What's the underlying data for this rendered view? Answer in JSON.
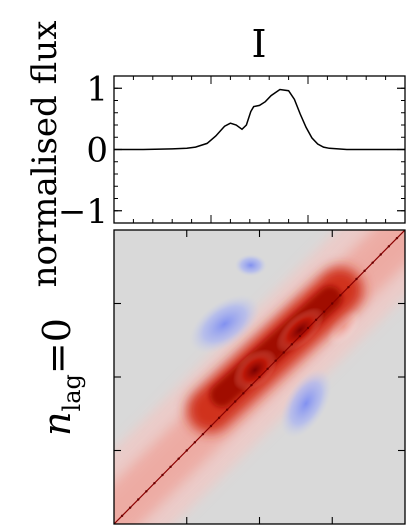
{
  "chart_data": [
    {
      "type": "line",
      "title": "I",
      "ylabel": "normalised flux",
      "xlabel": "",
      "ylim": [
        -1.2,
        1.2
      ],
      "yticks": [
        1,
        0,
        -1
      ],
      "ytick_labels": [
        "1",
        "0",
        "−1"
      ],
      "grid": false,
      "series": [
        {
          "x": [
            0.0,
            0.1,
            0.2,
            0.25,
            0.28,
            0.32,
            0.35,
            0.38,
            0.4,
            0.42,
            0.44,
            0.455,
            0.47,
            0.48,
            0.49,
            0.5,
            0.52,
            0.54,
            0.57,
            0.6,
            0.62,
            0.64,
            0.66,
            0.68,
            0.7,
            0.72,
            0.74,
            0.77,
            0.8,
            0.85,
            0.9,
            0.95,
            1.0
          ],
          "y": [
            0.0,
            0.0,
            0.01,
            0.02,
            0.04,
            0.1,
            0.22,
            0.38,
            0.43,
            0.4,
            0.33,
            0.4,
            0.62,
            0.7,
            0.71,
            0.72,
            0.78,
            0.88,
            0.98,
            0.96,
            0.82,
            0.58,
            0.36,
            0.19,
            0.09,
            0.04,
            0.02,
            0.01,
            0.0,
            0.0,
            0.0,
            0.0,
            0.0
          ]
        }
      ]
    },
    {
      "type": "heatmap",
      "ylabel": "n_lag=0",
      "ylabel_main": "n",
      "ylabel_sub": "lag",
      "ylabel_rest": "=0",
      "colormap": "diverging blue-white-red",
      "colors": {
        "positive": "#cc1a08",
        "negative": "#8090f0",
        "background": "#d9d9d9"
      },
      "features": [
        {
          "kind": "diagonal",
          "sign": "positive",
          "from": 0.0,
          "to": 1.0
        },
        {
          "kind": "band",
          "sign": "positive",
          "along": "diagonal",
          "from": 0.42,
          "to": 0.66
        },
        {
          "kind": "blob",
          "sign": "negative",
          "x": 0.38,
          "y": 0.32
        },
        {
          "kind": "blob",
          "sign": "negative",
          "x": 0.66,
          "y": 0.59
        },
        {
          "kind": "blob",
          "sign": "negative",
          "x": 0.47,
          "y": 0.12
        },
        {
          "kind": "blob",
          "sign": "positive",
          "x": 0.68,
          "y": 0.23
        },
        {
          "kind": "blob",
          "sign": "positive",
          "x": 0.79,
          "y": 0.33
        }
      ]
    }
  ]
}
